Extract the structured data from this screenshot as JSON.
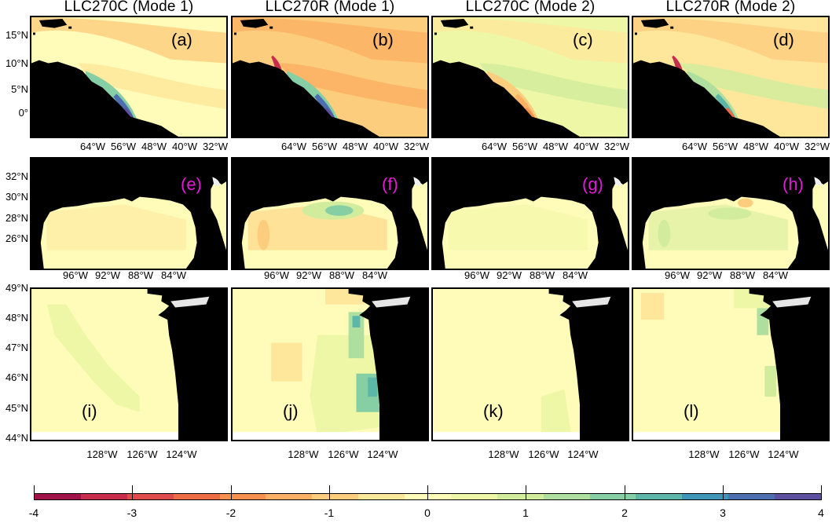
{
  "column_titles": [
    "LLC270C (Mode 1)",
    "LLC270R (Mode 1)",
    "LLC270C (Mode 2)",
    "LLC270R (Mode 2)"
  ],
  "rows": [
    {
      "region": "amazon",
      "panel_labels": [
        "(a)",
        "(b)",
        "(c)",
        "(d)"
      ],
      "y_ticks": [
        "15°N",
        "10°N",
        "5°N",
        "0°"
      ],
      "x_ticks": [
        "64°W",
        "56°W",
        "48°W",
        "40°W",
        "32°W"
      ],
      "label_color": "#000000"
    },
    {
      "region": "gulf",
      "panel_labels": [
        "(e)",
        "(f)",
        "(g)",
        "(h)"
      ],
      "y_ticks": [
        "32°N",
        "30°N",
        "28°N",
        "26°N"
      ],
      "x_ticks": [
        "96°W",
        "92°W",
        "88°W",
        "84°W"
      ],
      "label_color": "#e21ad8"
    },
    {
      "region": "columbia",
      "panel_labels": [
        "(i)",
        "(j)",
        "(k)",
        "(l)"
      ],
      "y_ticks": [
        "49°N",
        "48°N",
        "47°N",
        "46°N",
        "45°N",
        "44°N"
      ],
      "x_ticks": [
        "128°W",
        "126°W",
        "124°W"
      ],
      "label_color": "#000000"
    }
  ],
  "colorbar": {
    "range": [
      -4,
      4
    ],
    "tick_labels": [
      "-4",
      "-3",
      "-2",
      "-1",
      "0",
      "1",
      "2",
      "3",
      "4"
    ],
    "colors": [
      "#a0124a",
      "#c62d4d",
      "#dd4b4b",
      "#ec6c43",
      "#f6904f",
      "#fbb063",
      "#fdcd7e",
      "#fee79b",
      "#fffbb9",
      "#eef7a6",
      "#d2ec9d",
      "#afdf9f",
      "#86cfa4",
      "#5db7a8",
      "#3f95b7",
      "#4d6fb1",
      "#5d50a0"
    ],
    "land_color": "#000000"
  }
}
